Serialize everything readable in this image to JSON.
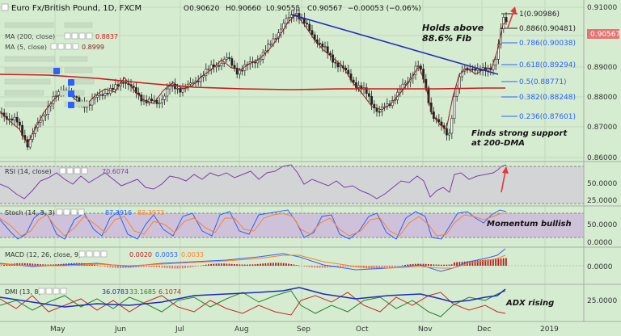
{
  "header": {
    "title": "Euro Fx/British Pound, 1D, FXCM",
    "o": "O0.90620",
    "h": "H0.90660",
    "l": "L0.90555",
    "c": "C0.90567",
    "chg": "−0.00053 (−0.06%)",
    "ma200_label": "MA (200, close)",
    "ma200_val": "0.8837",
    "ma5_label": "MA (5, close)",
    "ma5_val": "0.8999"
  },
  "price_axis": [
    "0.91000",
    "0.90000",
    "0.89000",
    "0.88000",
    "0.87000",
    "0.86000"
  ],
  "last_price": "0.90567",
  "fib": [
    {
      "label": "1(0.90986)",
      "color": "#222222"
    },
    {
      "label": "0.886(0.90481)",
      "color": "#222222"
    },
    {
      "label": "0.786(0.90038)",
      "color": "#2962ff"
    },
    {
      "label": "0.618(0.89294)",
      "color": "#2962ff"
    },
    {
      "label": "0.5(0.88771)",
      "color": "#2962ff"
    },
    {
      "label": "0.382(0.88248)",
      "color": "#2962ff"
    },
    {
      "label": "0.236(0.87601)",
      "color": "#2962ff"
    }
  ],
  "annotations": {
    "fib_hold_1": "Holds above",
    "fib_hold_2": "88.6% Fib",
    "support_1": "Finds strong support",
    "support_2": "at 200-DMA",
    "momentum": "Momentum bullish",
    "adx": "ADX rising"
  },
  "rsi": {
    "label": "RSI (14, close)",
    "val": "70.6074",
    "axis": [
      "50.0000",
      "25.0000"
    ]
  },
  "stoch": {
    "label": "Stoch (14, 3, 3)",
    "k": "87.3916",
    "d": "83.3973",
    "axis": [
      "50.0000",
      "0.0000"
    ]
  },
  "macd": {
    "label": "MACD (12, 26, close, 9)",
    "hist": "0.0020",
    "macd": "0.0053",
    "signal": "0.0033",
    "axis": [
      "0.0000"
    ]
  },
  "dmi": {
    "label": "DMI (13, 8)",
    "plus": "36.0783",
    "minus": "33.1685",
    "adx": "6.1074",
    "axis": [
      "25.0000"
    ]
  },
  "time_axis": [
    "May",
    "Jun",
    "Jul",
    "Aug",
    "Sep",
    "Oct",
    "Nov",
    "Dec",
    "2019"
  ],
  "colors": {
    "background": "#d6ecd0",
    "candle": "#222222",
    "ma200": "#cc1a1a",
    "ma5": "#8b1e1e",
    "trendline": "#1f2bb8",
    "rsi": "#7b3fa8",
    "stoch_k": "#2962ff",
    "stoch_d": "#ff7f2a",
    "macd": "#2962ff",
    "signal": "#ff7f2a",
    "hist": "#b71c1c",
    "dmi_plus": "#2e7d32",
    "dmi_minus": "#c62828",
    "adx": "#1f2bb8",
    "arrow": "#e53935"
  }
}
